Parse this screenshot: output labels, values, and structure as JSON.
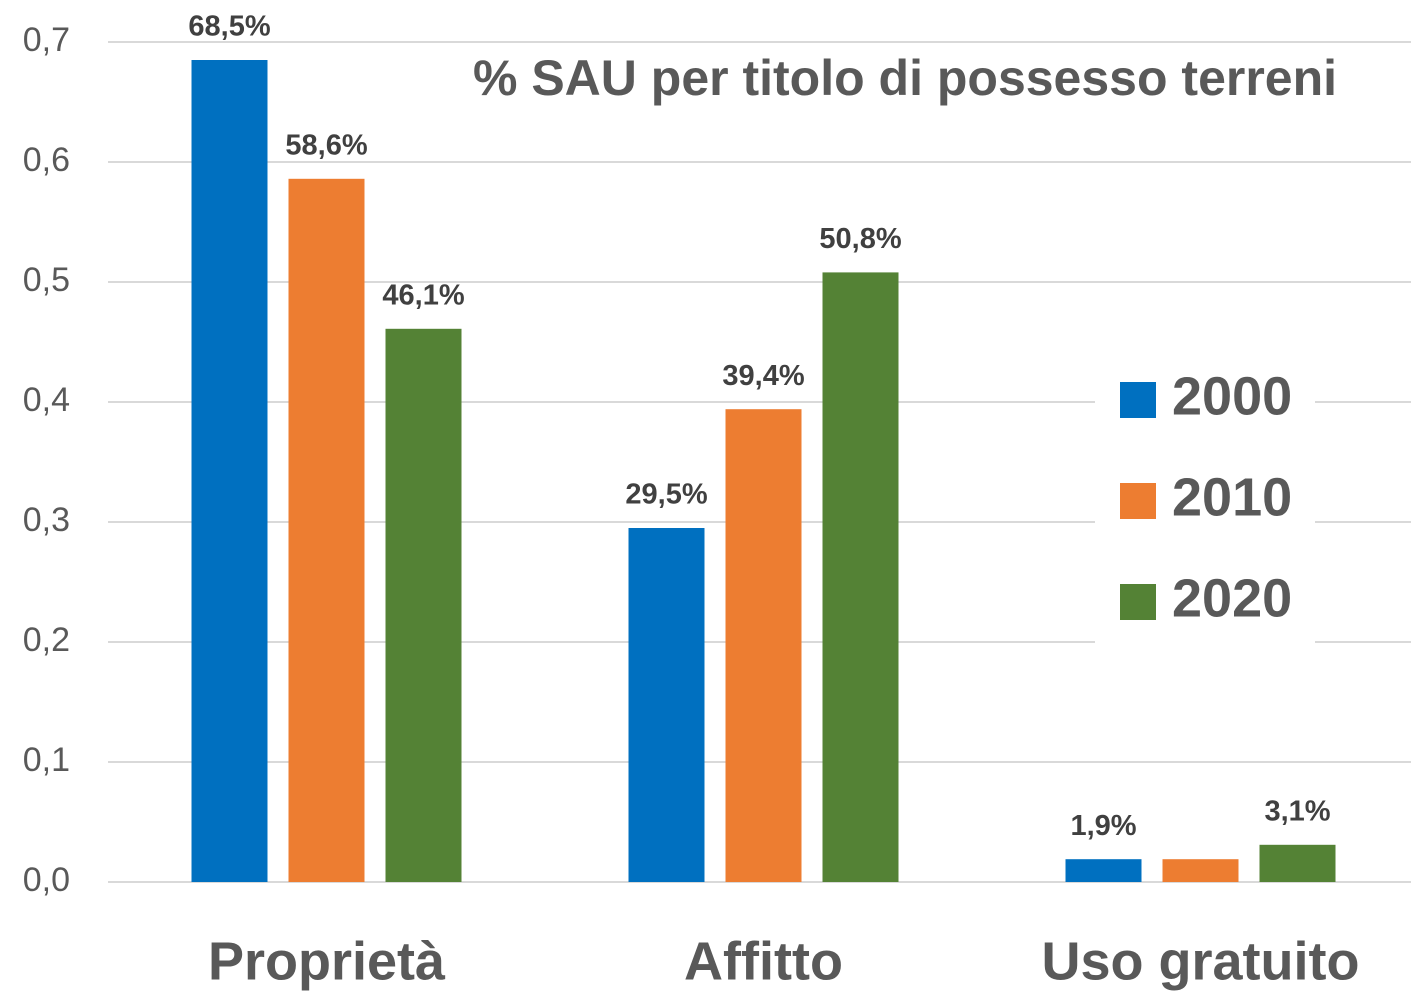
{
  "chart_data": {
    "type": "bar",
    "title": "% SAU per titolo di possesso terreni",
    "categories": [
      "Proprietà",
      "Affitto",
      "Uso gratuito"
    ],
    "series": [
      {
        "name": "2000",
        "color": "#0070c0",
        "values": [
          0.685,
          0.295,
          0.019
        ],
        "value_labels": [
          "68,5%",
          "29,5%",
          "1,9%"
        ]
      },
      {
        "name": "2010",
        "color": "#ed7d31",
        "values": [
          0.586,
          0.394,
          0.019
        ],
        "value_labels": [
          "58,6%",
          "39,4%",
          null
        ]
      },
      {
        "name": "2020",
        "color": "#548235",
        "values": [
          0.461,
          0.508,
          0.031
        ],
        "value_labels": [
          "46,1%",
          "50,8%",
          "3,1%"
        ]
      }
    ],
    "ylim": [
      0,
      0.7
    ],
    "yticks": [
      {
        "value": 0,
        "label": "0,0"
      },
      {
        "value": 0.1,
        "label": "0,1"
      },
      {
        "value": 0.2,
        "label": "0,2"
      },
      {
        "value": 0.3,
        "label": "0,3"
      },
      {
        "value": 0.4,
        "label": "0,4"
      },
      {
        "value": 0.5,
        "label": "0,5"
      },
      {
        "value": 0.6,
        "label": "0,6"
      },
      {
        "value": 0.7,
        "label": "0,7"
      }
    ],
    "grid": true,
    "legend": "right"
  }
}
